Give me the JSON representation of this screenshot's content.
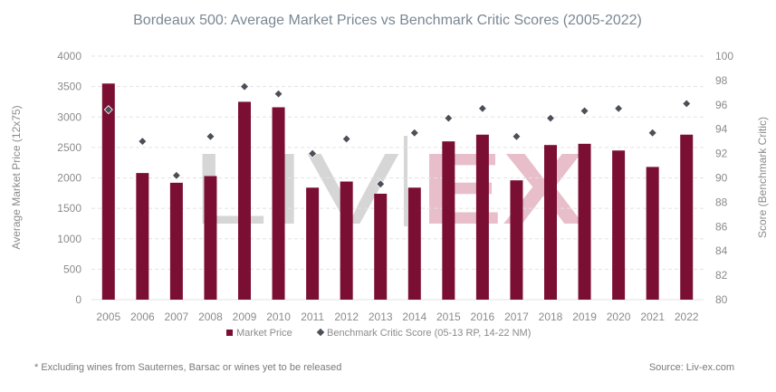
{
  "colors": {
    "bar": "#7b0f33",
    "marker": "#4b4f56",
    "grid": "#e3e3e3",
    "text": "#8b8b8b",
    "title": "#7a8794",
    "watermark_grey": "#cfcfcf",
    "watermark_red": "#e3b3c1"
  },
  "watermark": {
    "left": "LIV",
    "right": "EX"
  },
  "footnote": "* Excluding wines from Sauternes, Barsac or wines yet to be released",
  "source": "Source: Liv-ex.com",
  "chart_data": {
    "type": "bar",
    "title": "Bordeaux 500: Average Market Prices vs Benchmark Critic Scores (2005-2022)",
    "xlabel": "",
    "ylabel": "Average Market Price (12x75)",
    "y2label": "Score (Benchmark Critic)",
    "ylim": [
      0,
      4000
    ],
    "y2lim": [
      80,
      100
    ],
    "yticks": [
      0,
      500,
      1000,
      1500,
      2000,
      2500,
      3000,
      3500,
      4000
    ],
    "y2ticks": [
      80,
      82,
      84,
      86,
      88,
      90,
      92,
      94,
      96,
      98,
      100
    ],
    "grid": true,
    "legend": "bottom-center",
    "categories": [
      "2005",
      "2006",
      "2007",
      "2008",
      "2009",
      "2010",
      "2011",
      "2012",
      "2013",
      "2014",
      "2015",
      "2016",
      "2017",
      "2018",
      "2019",
      "2020",
      "2021",
      "2022"
    ],
    "series": [
      {
        "name": "Market Price",
        "type": "bar",
        "axis": "left",
        "values": [
          3550,
          2080,
          1920,
          2030,
          3250,
          3160,
          1840,
          1940,
          1740,
          1840,
          2600,
          2710,
          1960,
          2540,
          2560,
          2450,
          2180,
          2710
        ]
      },
      {
        "name": "Benchmark Critic Score (05-13 RP, 14-22 NM)",
        "type": "scatter",
        "axis": "right",
        "values": [
          95.6,
          93.0,
          90.2,
          93.4,
          97.5,
          96.9,
          92.0,
          93.2,
          89.5,
          93.7,
          94.9,
          95.7,
          93.4,
          94.9,
          95.5,
          95.7,
          93.7,
          96.1
        ]
      }
    ]
  }
}
